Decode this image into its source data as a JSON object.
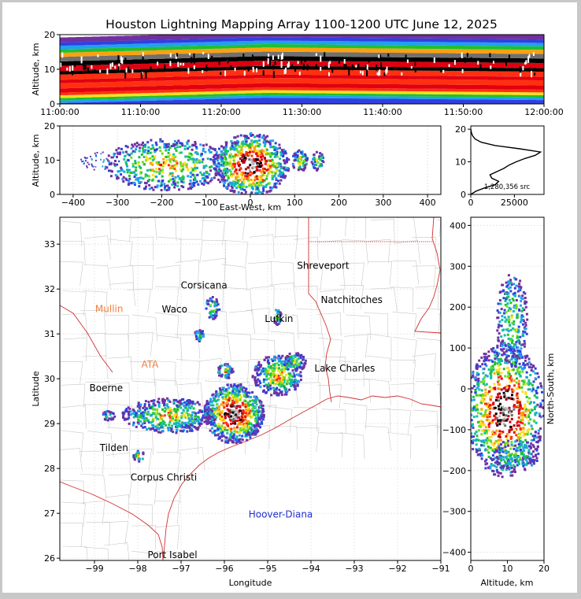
{
  "title": "Houston Lightning Mapping Array 1100-1200 UTC June 12, 2025",
  "colors": {
    "state_border": "#d03030",
    "county_border": "#c8c8c8",
    "highlight_label": "#f08040",
    "platform_label": "#2030d0"
  },
  "chart_data": [
    {
      "panel": "time-altitude",
      "type": "heatmap",
      "ylabel": "Altitude, km",
      "xlim": [
        "11:00:00",
        "12:00:00"
      ],
      "ylim": [
        0,
        20
      ],
      "x_ticks": [
        "11:00:00",
        "11:10:00",
        "11:20:00",
        "11:30:00",
        "11:40:00",
        "11:50:00",
        "12:00:00"
      ],
      "y_ticks": [
        0,
        10,
        20
      ]
    },
    {
      "panel": "east-west-altitude",
      "type": "heatmap",
      "xlabel": "East-West, km",
      "ylabel": "Altitude, km",
      "xlim": [
        -430,
        430
      ],
      "ylim": [
        0,
        20
      ],
      "x_ticks": [
        -400,
        -300,
        -200,
        -100,
        0,
        100,
        200,
        300,
        400
      ],
      "y_ticks": [
        0,
        10,
        20
      ]
    },
    {
      "panel": "altitude-histogram",
      "type": "line",
      "annotation": "1,280,356 src",
      "xlim": [
        0,
        42000
      ],
      "ylim": [
        0,
        21
      ],
      "x_ticks": [
        0,
        25000
      ],
      "y_ticks": [
        0,
        10,
        20
      ],
      "altitude_km": [
        0,
        1,
        2,
        3,
        4,
        5,
        6,
        7,
        8,
        9,
        10,
        11,
        12,
        13,
        14,
        15,
        16,
        17,
        18,
        19,
        20
      ],
      "source_count": [
        0,
        3000,
        8000,
        14000,
        16000,
        12000,
        11000,
        15000,
        19000,
        22000,
        26000,
        31000,
        37000,
        40000,
        28000,
        14000,
        6000,
        2500,
        1000,
        300,
        50
      ]
    },
    {
      "panel": "plan-view",
      "type": "heatmap",
      "xlabel": "Longitude",
      "ylabel": "Latitude",
      "xlim": [
        -99.8,
        -91
      ],
      "ylim": [
        25.95,
        33.6
      ],
      "x_ticks": [
        -99,
        -98,
        -97,
        -96,
        -95,
        -94,
        -93,
        -92,
        -91
      ],
      "y_ticks": [
        26,
        27,
        28,
        29,
        30,
        31,
        32,
        33
      ]
    },
    {
      "panel": "altitude-north-south",
      "type": "heatmap",
      "xlabel": "Altitude, km",
      "ylabel": "North-South, km",
      "xlim": [
        0,
        20
      ],
      "ylim": [
        -420,
        420
      ],
      "x_ticks": [
        0,
        10,
        20
      ],
      "y_ticks": [
        -400,
        -300,
        -200,
        -100,
        0,
        100,
        200,
        300,
        400
      ]
    }
  ],
  "cities": [
    {
      "name": "Shreveport",
      "lon": -93.72,
      "lat": 32.52
    },
    {
      "name": "Corsicana",
      "lon": -96.47,
      "lat": 32.08
    },
    {
      "name": "Natchitoches",
      "lon": -93.06,
      "lat": 31.76
    },
    {
      "name": "Waco",
      "lon": -97.15,
      "lat": 31.55
    },
    {
      "name": "Lufkin",
      "lon": -94.74,
      "lat": 31.34
    },
    {
      "name": "Lake Charles",
      "lon": -93.22,
      "lat": 30.23
    },
    {
      "name": "Boerne",
      "lon": -98.73,
      "lat": 29.79
    },
    {
      "name": "Tilden",
      "lon": -98.55,
      "lat": 28.46
    },
    {
      "name": "Corpus Christi",
      "lon": -97.4,
      "lat": 27.8
    },
    {
      "name": "Port Isabel",
      "lon": -97.2,
      "lat": 26.07
    }
  ],
  "highlight_labels": [
    {
      "name": "Mullin",
      "lon": -98.66,
      "lat": 31.56
    },
    {
      "name": "ATA",
      "lon": -97.72,
      "lat": 30.32
    }
  ],
  "platform_label": {
    "name": "Hoover-Diana",
    "lon": -94.7,
    "lat": 26.98
  }
}
